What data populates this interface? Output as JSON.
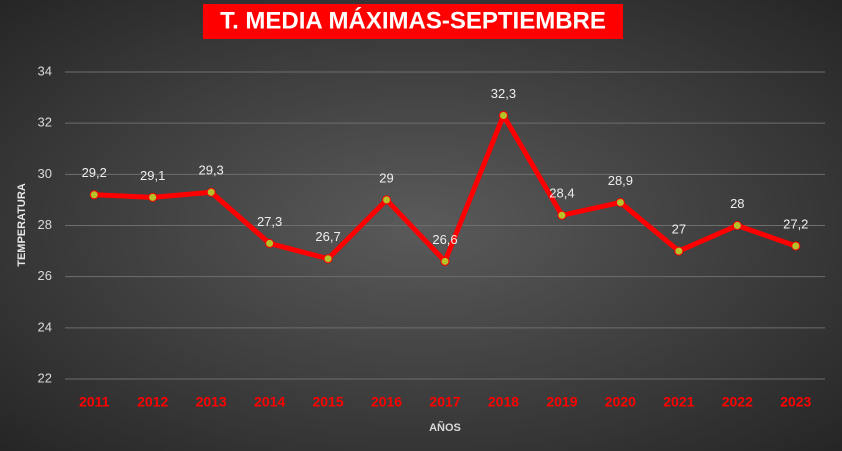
{
  "chart_data": {
    "type": "line",
    "title": "T. MEDIA MÁXIMAS-SEPTIEMBRE",
    "x_label": "AÑOS",
    "y_label": "TEMPERATURA",
    "categories": [
      "2011",
      "2012",
      "2013",
      "2014",
      "2015",
      "2016",
      "2017",
      "2018",
      "2019",
      "2020",
      "2021",
      "2022",
      "2023"
    ],
    "series": [
      {
        "color": "#ff0000",
        "marker_color": "#b5c22a",
        "values": [
          29.2,
          29.1,
          29.3,
          27.3,
          26.7,
          29,
          26.6,
          32.3,
          28.4,
          28.9,
          27,
          28,
          27.2
        ],
        "value_labels": [
          "29,2",
          "29,1",
          "29,3",
          "27,3",
          "26,7",
          "29",
          "26,6",
          "32,3",
          "28,4",
          "28,9",
          "27",
          "28",
          "27,2"
        ]
      }
    ],
    "ylim": [
      22,
      34
    ],
    "yticks": [
      22,
      24,
      26,
      28,
      30,
      32,
      34
    ],
    "grid": true
  }
}
